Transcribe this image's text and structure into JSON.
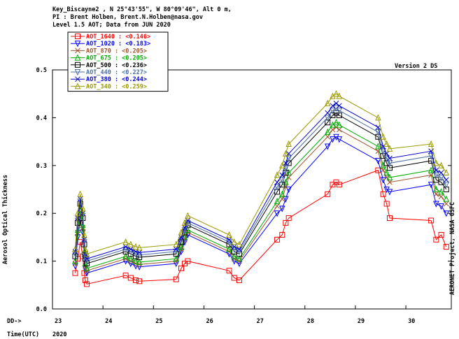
{
  "header": {
    "line1": "Key_Biscayne2 , N 25°43'55\", W 80°09'46\", Alt 0 m,",
    "line2": "PI : Brent Holben, Brent.N.Holben@nasa.gov",
    "line3": "Level 1.5 AOT; Data from JUN 2020",
    "version": "Version 2 DS",
    "side_label": "AERONET Project, NASA GSFC",
    "dd_label": "DD->",
    "time_label": "Time(UTC)",
    "year": "2020"
  },
  "chart_data": {
    "type": "line",
    "title": "",
    "xlabel": "",
    "ylabel": "Aerosol Optical Thickness",
    "xlim": [
      23,
      30.9
    ],
    "ylim": [
      0,
      0.5
    ],
    "yticks": [
      0.0,
      0.1,
      0.2,
      0.3,
      0.4,
      0.5
    ],
    "xticks": [
      23,
      24,
      25,
      26,
      27,
      28,
      29,
      30
    ],
    "grid": false,
    "legend_position": "top-left",
    "x": [
      23.45,
      23.5,
      23.55,
      23.6,
      23.63,
      23.65,
      23.68,
      24.45,
      24.55,
      24.65,
      24.72,
      25.45,
      25.55,
      25.62,
      25.68,
      26.5,
      26.6,
      26.7,
      27.45,
      27.55,
      27.62,
      27.68,
      28.45,
      28.55,
      28.62,
      28.68,
      29.45,
      29.55,
      29.62,
      29.68,
      30.5,
      30.6,
      30.7,
      30.8
    ],
    "series": [
      {
        "name": "AOT_1640",
        "mean": "0.146",
        "color": "#ff0000",
        "marker": "square",
        "values": [
          0.075,
          0.105,
          0.14,
          0.11,
          0.075,
          0.06,
          0.052,
          0.07,
          0.065,
          0.06,
          0.058,
          0.062,
          0.085,
          0.095,
          0.1,
          0.08,
          0.065,
          0.06,
          0.145,
          0.155,
          0.18,
          0.19,
          0.24,
          0.26,
          0.265,
          0.26,
          0.29,
          0.24,
          0.22,
          0.19,
          0.185,
          0.145,
          0.155,
          0.13
        ]
      },
      {
        "name": "AOT_1020",
        "mean": "0.183",
        "color": "#0000ff",
        "marker": "triangle-down",
        "values": [
          0.09,
          0.15,
          0.185,
          0.16,
          0.11,
          0.085,
          0.075,
          0.1,
          0.095,
          0.09,
          0.088,
          0.095,
          0.12,
          0.14,
          0.155,
          0.115,
          0.1,
          0.095,
          0.2,
          0.21,
          0.23,
          0.25,
          0.34,
          0.355,
          0.36,
          0.355,
          0.31,
          0.27,
          0.25,
          0.245,
          0.26,
          0.22,
          0.215,
          0.2
        ]
      },
      {
        "name": "AOT_870",
        "mean": "0.205",
        "color": "#a0522d",
        "marker": "x",
        "values": [
          0.095,
          0.16,
          0.2,
          0.17,
          0.115,
          0.09,
          0.08,
          0.105,
          0.1,
          0.095,
          0.093,
          0.1,
          0.125,
          0.145,
          0.16,
          0.12,
          0.105,
          0.1,
          0.215,
          0.23,
          0.255,
          0.275,
          0.36,
          0.375,
          0.38,
          0.375,
          0.33,
          0.29,
          0.275,
          0.265,
          0.28,
          0.24,
          0.235,
          0.22
        ]
      },
      {
        "name": "AOT_675",
        "mean": "0.205",
        "color": "#00aa00",
        "marker": "triangle-up",
        "values": [
          0.1,
          0.165,
          0.205,
          0.175,
          0.12,
          0.095,
          0.085,
          0.11,
          0.105,
          0.1,
          0.098,
          0.105,
          0.13,
          0.15,
          0.165,
          0.125,
          0.11,
          0.105,
          0.225,
          0.24,
          0.265,
          0.285,
          0.37,
          0.385,
          0.39,
          0.385,
          0.34,
          0.3,
          0.285,
          0.275,
          0.29,
          0.25,
          0.245,
          0.23
        ]
      },
      {
        "name": "AOT_500",
        "mean": "0.236",
        "color": "#000000",
        "marker": "square",
        "values": [
          0.11,
          0.18,
          0.22,
          0.19,
          0.135,
          0.105,
          0.095,
          0.12,
          0.115,
          0.11,
          0.108,
          0.115,
          0.14,
          0.16,
          0.175,
          0.135,
          0.12,
          0.115,
          0.245,
          0.26,
          0.285,
          0.305,
          0.39,
          0.405,
          0.41,
          0.405,
          0.36,
          0.32,
          0.305,
          0.295,
          0.31,
          0.27,
          0.265,
          0.25
        ]
      },
      {
        "name": "AOT_440",
        "mean": "0.227",
        "color": "#4a6fa5",
        "marker": "triangle-down",
        "values": [
          0.115,
          0.185,
          0.225,
          0.195,
          0.14,
          0.11,
          0.1,
          0.125,
          0.12,
          0.115,
          0.113,
          0.12,
          0.145,
          0.165,
          0.18,
          0.14,
          0.125,
          0.12,
          0.255,
          0.27,
          0.295,
          0.315,
          0.4,
          0.415,
          0.42,
          0.415,
          0.37,
          0.33,
          0.315,
          0.305,
          0.32,
          0.28,
          0.275,
          0.26
        ]
      },
      {
        "name": "AOT_380",
        "mean": "0.244",
        "color": "#0000cc",
        "marker": "x",
        "values": [
          0.12,
          0.19,
          0.23,
          0.2,
          0.145,
          0.115,
          0.105,
          0.13,
          0.125,
          0.12,
          0.118,
          0.125,
          0.15,
          0.17,
          0.185,
          0.145,
          0.13,
          0.125,
          0.265,
          0.28,
          0.305,
          0.325,
          0.41,
          0.425,
          0.43,
          0.425,
          0.38,
          0.34,
          0.325,
          0.315,
          0.33,
          0.29,
          0.285,
          0.27
        ]
      },
      {
        "name": "AOT_340",
        "mean": "0.259",
        "color": "#999900",
        "marker": "triangle-up",
        "values": [
          0.125,
          0.2,
          0.24,
          0.21,
          0.155,
          0.125,
          0.115,
          0.14,
          0.135,
          0.13,
          0.128,
          0.135,
          0.16,
          0.18,
          0.195,
          0.155,
          0.14,
          0.135,
          0.28,
          0.3,
          0.325,
          0.345,
          0.43,
          0.445,
          0.45,
          0.445,
          0.4,
          0.36,
          0.345,
          0.335,
          0.345,
          0.305,
          0.3,
          0.285
        ]
      }
    ]
  }
}
